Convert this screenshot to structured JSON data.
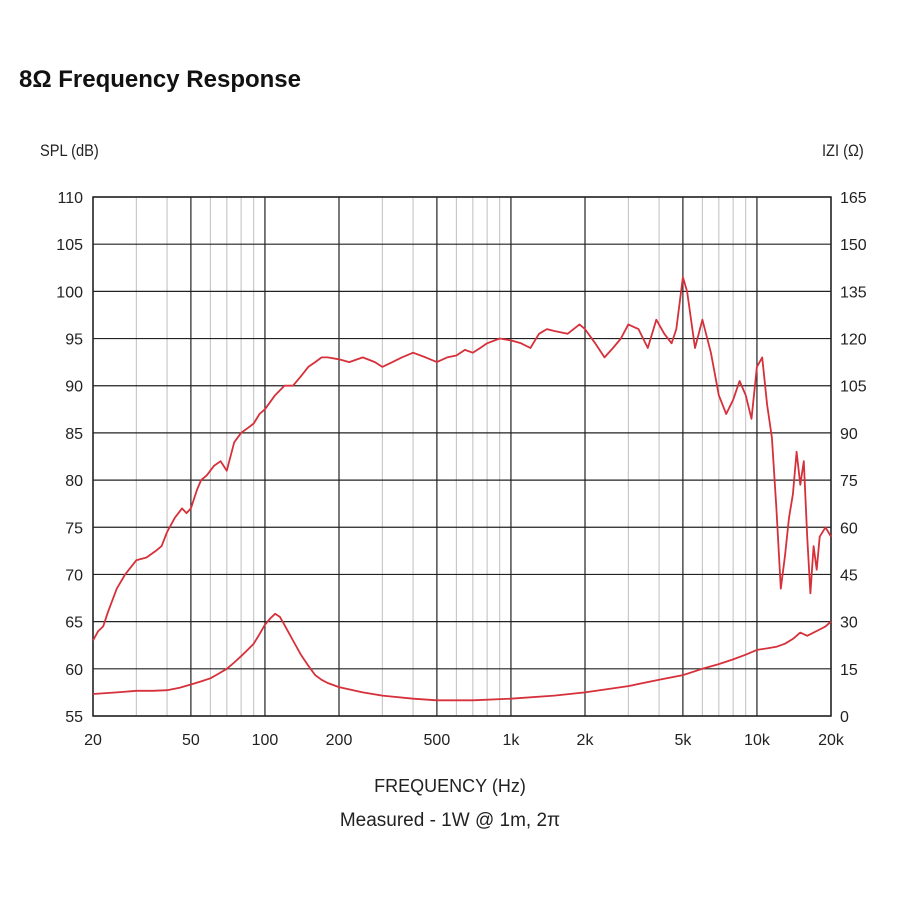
{
  "page": {
    "title": "8Ω Frequency Response"
  },
  "colors": {
    "curve": "#d6303a",
    "grid_major": "#222222",
    "grid_minor": "#bfbfbf"
  },
  "chart_data": {
    "type": "line",
    "title": "8Ω Frequency Response",
    "xlabel": "FREQUENCY (Hz)",
    "ylabel": "SPL (dB)",
    "y2label": "IZI (Ω)",
    "note": "Measured - 1W @ 1m, 2π",
    "x_scale": "log",
    "xlim": [
      20,
      20000
    ],
    "ylim": [
      55,
      110
    ],
    "y2lim": [
      0,
      165
    ],
    "grid": true,
    "x_ticks": [
      "20",
      "50",
      "100",
      "200",
      "500",
      "1k",
      "2k",
      "5k",
      "10k",
      "20k"
    ],
    "y_ticks": [
      "110",
      "105",
      "100",
      "95",
      "90",
      "85",
      "80",
      "75",
      "70",
      "65",
      "60",
      "55"
    ],
    "y2_ticks": [
      "165",
      "150",
      "135",
      "120",
      "105",
      "90",
      "75",
      "60",
      "45",
      "30",
      "15",
      "0"
    ],
    "series": [
      {
        "name": "SPL",
        "axis": "left",
        "x": [
          20,
          21,
          22,
          23,
          25,
          27,
          30,
          33,
          36,
          38,
          40,
          43,
          46,
          48,
          50,
          53,
          55,
          58,
          62,
          66,
          70,
          75,
          80,
          85,
          90,
          95,
          100,
          110,
          120,
          130,
          140,
          150,
          160,
          170,
          180,
          200,
          220,
          250,
          280,
          300,
          330,
          360,
          400,
          450,
          500,
          550,
          600,
          650,
          700,
          750,
          800,
          900,
          1000,
          1100,
          1200,
          1300,
          1400,
          1500,
          1700,
          1900,
          2000,
          2200,
          2400,
          2600,
          2800,
          3000,
          3300,
          3600,
          3900,
          4200,
          4500,
          4700,
          5000,
          5200,
          5600,
          6000,
          6500,
          7000,
          7500,
          8000,
          8500,
          9000,
          9500,
          10000,
          10500,
          11000,
          11500,
          12000,
          12500,
          13000,
          13500,
          14000,
          14500,
          15000,
          15500,
          16000,
          16500,
          17000,
          17500,
          18000,
          19000,
          20000
        ],
        "values": [
          63,
          64,
          64.5,
          66,
          68.5,
          70,
          71.5,
          71.8,
          72.5,
          73,
          74.5,
          76,
          77,
          76.5,
          77,
          79,
          80,
          80.5,
          81.5,
          82,
          81,
          84,
          85,
          85.5,
          86,
          87,
          87.5,
          89,
          90,
          90,
          91,
          92,
          92.5,
          93,
          93,
          92.8,
          92.5,
          93,
          92.5,
          92,
          92.5,
          93,
          93.5,
          93,
          92.5,
          93,
          93.2,
          93.8,
          93.5,
          94,
          94.5,
          95,
          94.8,
          94.5,
          94,
          95.5,
          96,
          95.8,
          95.5,
          96.5,
          96,
          94.5,
          93,
          94,
          95,
          96.5,
          96,
          94,
          97,
          95.5,
          94.5,
          96,
          101.5,
          100,
          94,
          97,
          93.5,
          89,
          87,
          88.5,
          90.5,
          89,
          86.5,
          92,
          93,
          88,
          84.5,
          77,
          68.5,
          72,
          76,
          78.5,
          83,
          79.5,
          82,
          74,
          68,
          73,
          70.5,
          74,
          75,
          74
        ]
      },
      {
        "name": "Impedance",
        "axis": "right",
        "x": [
          20,
          25,
          30,
          35,
          40,
          45,
          50,
          55,
          60,
          65,
          70,
          75,
          80,
          85,
          90,
          95,
          100,
          105,
          110,
          115,
          120,
          130,
          140,
          150,
          160,
          170,
          180,
          200,
          250,
          300,
          400,
          500,
          700,
          1000,
          1500,
          2000,
          3000,
          4000,
          5000,
          6000,
          7000,
          8000,
          9000,
          10000,
          11000,
          12000,
          13000,
          14000,
          15000,
          16000,
          17000,
          18000,
          19000,
          20000
        ],
        "values": [
          7,
          7.5,
          8,
          8,
          8.2,
          9,
          10,
          11,
          12,
          13.5,
          15,
          17,
          19,
          21,
          23,
          26,
          29,
          31,
          32.5,
          31.5,
          29,
          24,
          19.5,
          16,
          13,
          11.5,
          10.5,
          9.2,
          7.5,
          6.5,
          5.5,
          5,
          5,
          5.5,
          6.5,
          7.5,
          9.5,
          11.5,
          13,
          15,
          16.5,
          18,
          19.5,
          21,
          21.5,
          22,
          23,
          24.5,
          26.5,
          25.5,
          26.5,
          27.5,
          28.5,
          30
        ]
      }
    ]
  }
}
